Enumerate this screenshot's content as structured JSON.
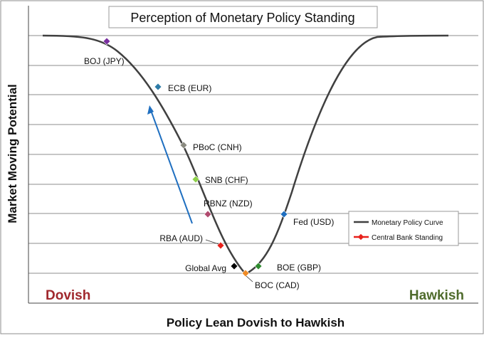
{
  "chart_data": {
    "type": "line",
    "title": "Perception of Monetary Policy Standing",
    "xlabel": "Policy Lean Dovish to Hawkish",
    "ylabel": "Market Moving Potential",
    "left_label": "Dovish",
    "right_label": "Hawkish",
    "grid": "horizontal",
    "legend_position": "right",
    "legend": {
      "curve": "Monetary Policy Curve",
      "standing": "Central Bank Standing"
    },
    "colors": {
      "curve": "#404040",
      "arrow": "#1f6fc0",
      "dovish": "#a0282d",
      "hawkish": "#4f6b2c",
      "standing_marker": "#e8211b",
      "grid": "#666666"
    },
    "banks": [
      {
        "label": "BOJ (JPY)",
        "color": "#7a30a0"
      },
      {
        "label": "ECB (EUR)",
        "color": "#2e7ca8"
      },
      {
        "label": "PBoC (CNH)",
        "color": "#8a8a80"
      },
      {
        "label": "SNB (CHF)",
        "color": "#8ed04a"
      },
      {
        "label": "RBNZ (NZD)",
        "color": "#b04a6e"
      },
      {
        "label": "RBA (AUD)",
        "color": "#e8211b"
      },
      {
        "label": "Global Avg",
        "color": "#000000"
      },
      {
        "label": "BOC (CAD)",
        "color": "#ef8b25"
      },
      {
        "label": "BOE (GBP)",
        "color": "#2e8b2e"
      },
      {
        "label": "Fed (USD)",
        "color": "#1f6fc0"
      }
    ]
  }
}
